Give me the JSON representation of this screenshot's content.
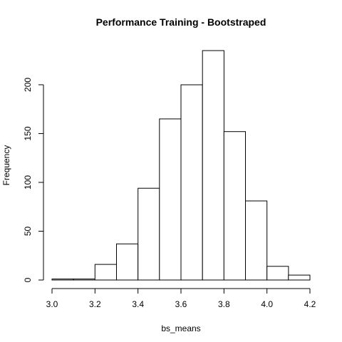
{
  "chart_data": {
    "type": "bar",
    "title": "Performance Training - Bootstraped",
    "xlabel": "bs_means",
    "ylabel": "Frequency",
    "bin_edges": [
      3.0,
      3.1,
      3.2,
      3.3,
      3.4,
      3.5,
      3.6,
      3.7,
      3.8,
      3.9,
      4.0,
      4.1,
      4.2
    ],
    "values": [
      1,
      1,
      16,
      37,
      94,
      165,
      200,
      235,
      152,
      81,
      14,
      5
    ],
    "xlim": [
      3.0,
      4.2
    ],
    "ylim": [
      0,
      235
    ],
    "xticks": [
      "3.0",
      "3.2",
      "3.4",
      "3.6",
      "3.8",
      "4.0",
      "4.2"
    ],
    "yticks": [
      "0",
      "50",
      "100",
      "150",
      "200"
    ],
    "grid": false,
    "legend": "none",
    "colors": {
      "bar_fill": "#ffffff",
      "bar_stroke": "#000000"
    }
  }
}
